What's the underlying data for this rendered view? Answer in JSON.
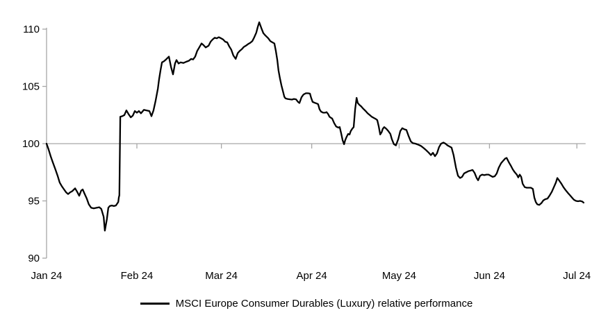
{
  "colors": {
    "background": "#FFFFFF",
    "axis": "#A6A6A6",
    "line": "#000000",
    "text": "#000000"
  },
  "chart_data": {
    "type": "line",
    "title": "",
    "legend": {
      "position": "bottom",
      "label": "MSCI Europe Consumer Durables (Luxury) relative performance"
    },
    "y_axis": {
      "range": [
        90,
        110
      ],
      "ticks": [
        90,
        95,
        100,
        105,
        110
      ],
      "tick_labels": [
        "90",
        "95",
        "100",
        "105",
        "110"
      ],
      "baseline_crossing": 100
    },
    "x_axis": {
      "unit": "days since 1 Jan 2024",
      "domain": [
        0,
        185
      ],
      "ticks": [
        {
          "d": 0,
          "label": "Jan 24"
        },
        {
          "d": 31,
          "label": "Feb 24"
        },
        {
          "d": 60,
          "label": "Mar 24"
        },
        {
          "d": 91,
          "label": "Apr 24"
        },
        {
          "d": 121,
          "label": "May 24"
        },
        {
          "d": 152,
          "label": "Jun 24"
        },
        {
          "d": 182,
          "label": "Jul 24"
        }
      ]
    },
    "grid": {
      "horizontal_line_at": 100,
      "vertical": false
    },
    "series": [
      {
        "name": "MSCI Europe Consumer Durables (Luxury) relative performance",
        "color": "#000000",
        "points": [
          [
            0,
            100
          ],
          [
            0.7,
            99.5
          ],
          [
            1.4,
            98.9
          ],
          [
            2.1,
            98.4
          ],
          [
            3.1,
            97.7
          ],
          [
            3.8,
            97.2
          ],
          [
            4.5,
            96.6
          ],
          [
            5.2,
            96.3
          ],
          [
            6,
            96
          ],
          [
            6.7,
            95.75
          ],
          [
            7.4,
            95.6
          ],
          [
            8.1,
            95.75
          ],
          [
            8.8,
            95.85
          ],
          [
            9.8,
            96.1
          ],
          [
            10.5,
            95.8
          ],
          [
            11.2,
            95.45
          ],
          [
            11.9,
            95.9
          ],
          [
            12.4,
            96
          ],
          [
            13.1,
            95.6
          ],
          [
            13.8,
            95.2
          ],
          [
            14.5,
            94.7
          ],
          [
            15.3,
            94.4
          ],
          [
            16.2,
            94.35
          ],
          [
            17.2,
            94.4
          ],
          [
            18.1,
            94.45
          ],
          [
            18.8,
            94.3
          ],
          [
            19.6,
            93.6
          ],
          [
            20,
            92.4
          ],
          [
            20.7,
            93.4
          ],
          [
            21.2,
            94.4
          ],
          [
            21.7,
            94.55
          ],
          [
            22.4,
            94.6
          ],
          [
            23.1,
            94.55
          ],
          [
            23.8,
            94.6
          ],
          [
            24.6,
            94.9
          ],
          [
            24.8,
            95.3
          ],
          [
            25,
            95.5
          ],
          [
            25.3,
            102.35
          ],
          [
            26,
            102.4
          ],
          [
            26.7,
            102.5
          ],
          [
            27.4,
            102.9
          ],
          [
            28.1,
            102.6
          ],
          [
            28.9,
            102.3
          ],
          [
            29.6,
            102.45
          ],
          [
            30.3,
            102.85
          ],
          [
            31,
            102.7
          ],
          [
            31.7,
            102.85
          ],
          [
            32.4,
            102.65
          ],
          [
            33.4,
            102.95
          ],
          [
            34.3,
            102.9
          ],
          [
            35.3,
            102.85
          ],
          [
            36,
            102.4
          ],
          [
            36.7,
            102.9
          ],
          [
            37.4,
            103.7
          ],
          [
            38.2,
            104.8
          ],
          [
            38.6,
            105.6
          ],
          [
            39.1,
            106.4
          ],
          [
            39.6,
            107.1
          ],
          [
            40.3,
            107.2
          ],
          [
            41,
            107.35
          ],
          [
            42,
            107.6
          ],
          [
            42.7,
            106.7
          ],
          [
            43.4,
            106.05
          ],
          [
            44.1,
            107
          ],
          [
            44.6,
            107.3
          ],
          [
            45.3,
            107
          ],
          [
            46,
            107.1
          ],
          [
            47,
            107.05
          ],
          [
            47.9,
            107.15
          ],
          [
            48.9,
            107.25
          ],
          [
            49.6,
            107.4
          ],
          [
            50.3,
            107.35
          ],
          [
            51,
            107.6
          ],
          [
            51.7,
            108.1
          ],
          [
            52.5,
            108.45
          ],
          [
            53.2,
            108.75
          ],
          [
            53.9,
            108.6
          ],
          [
            54.6,
            108.4
          ],
          [
            55.6,
            108.55
          ],
          [
            56.3,
            108.9
          ],
          [
            57,
            109.1
          ],
          [
            57.7,
            109.25
          ],
          [
            58.4,
            109.2
          ],
          [
            59.1,
            109.3
          ],
          [
            59.9,
            109.2
          ],
          [
            60.6,
            109.1
          ],
          [
            61.3,
            108.9
          ],
          [
            62,
            108.85
          ],
          [
            62.7,
            108.5
          ],
          [
            63.4,
            108.2
          ],
          [
            64.1,
            107.7
          ],
          [
            64.9,
            107.4
          ],
          [
            65.6,
            107.9
          ],
          [
            66.3,
            108.1
          ],
          [
            67,
            108.25
          ],
          [
            67.7,
            108.45
          ],
          [
            68.4,
            108.55
          ],
          [
            69.2,
            108.7
          ],
          [
            69.9,
            108.8
          ],
          [
            70.6,
            108.95
          ],
          [
            71.3,
            109.3
          ],
          [
            72,
            109.7
          ],
          [
            72.5,
            110.2
          ],
          [
            73,
            110.6
          ],
          [
            73.7,
            110.1
          ],
          [
            74.4,
            109.65
          ],
          [
            75.1,
            109.45
          ],
          [
            76.1,
            109.2
          ],
          [
            76.8,
            108.95
          ],
          [
            77.5,
            108.85
          ],
          [
            78.2,
            108.75
          ],
          [
            78.7,
            108.1
          ],
          [
            79.2,
            107.3
          ],
          [
            79.6,
            106.4
          ],
          [
            80.1,
            105.7
          ],
          [
            80.6,
            105.1
          ],
          [
            81.1,
            104.6
          ],
          [
            81.6,
            104.1
          ],
          [
            82,
            103.95
          ],
          [
            82.7,
            103.9
          ],
          [
            83.5,
            103.87
          ],
          [
            84.2,
            103.85
          ],
          [
            84.9,
            103.9
          ],
          [
            85.6,
            103.87
          ],
          [
            86.3,
            103.65
          ],
          [
            86.8,
            103.55
          ],
          [
            87.5,
            104.05
          ],
          [
            88.2,
            104.3
          ],
          [
            89,
            104.4
          ],
          [
            89.7,
            104.4
          ],
          [
            90.4,
            104.37
          ],
          [
            90.8,
            104
          ],
          [
            91.3,
            103.65
          ],
          [
            92,
            103.57
          ],
          [
            92.8,
            103.5
          ],
          [
            93.2,
            103.45
          ],
          [
            93.7,
            103
          ],
          [
            94.2,
            102.8
          ],
          [
            94.9,
            102.7
          ],
          [
            95.6,
            102.7
          ],
          [
            96.1,
            102.75
          ],
          [
            96.6,
            102.6
          ],
          [
            97.1,
            102.35
          ],
          [
            97.5,
            102.27
          ],
          [
            98,
            102.2
          ],
          [
            98.7,
            101.8
          ],
          [
            99.4,
            101.5
          ],
          [
            100.2,
            101.4
          ],
          [
            100.6,
            101.45
          ],
          [
            101.1,
            100.9
          ],
          [
            101.6,
            100.3
          ],
          [
            102.1,
            99.95
          ],
          [
            102.5,
            100.3
          ],
          [
            103,
            100.6
          ],
          [
            103.5,
            100.85
          ],
          [
            104,
            100.8
          ],
          [
            104.4,
            101.1
          ],
          [
            104.9,
            101.3
          ],
          [
            105.4,
            101.45
          ],
          [
            105.9,
            103
          ],
          [
            106.4,
            104
          ],
          [
            106.8,
            103.55
          ],
          [
            107.3,
            103.4
          ],
          [
            108,
            103.25
          ],
          [
            108.7,
            103.05
          ],
          [
            109.5,
            102.85
          ],
          [
            110.2,
            102.65
          ],
          [
            110.9,
            102.5
          ],
          [
            111.6,
            102.35
          ],
          [
            112.3,
            102.25
          ],
          [
            113,
            102.15
          ],
          [
            113.5,
            102.05
          ],
          [
            114,
            101.5
          ],
          [
            114.5,
            100.8
          ],
          [
            115,
            101
          ],
          [
            115.4,
            101.3
          ],
          [
            115.9,
            101.45
          ],
          [
            116.6,
            101.3
          ],
          [
            117.3,
            101.1
          ],
          [
            118,
            100.85
          ],
          [
            118.5,
            100.4
          ],
          [
            119.2,
            99.95
          ],
          [
            119.9,
            99.85
          ],
          [
            120.7,
            100.4
          ],
          [
            121.4,
            101.1
          ],
          [
            122.1,
            101.35
          ],
          [
            122.8,
            101.25
          ],
          [
            123.5,
            101.2
          ],
          [
            124.2,
            100.7
          ],
          [
            125,
            100.2
          ],
          [
            125.7,
            100.05
          ],
          [
            126.6,
            100
          ],
          [
            127.6,
            99.9
          ],
          [
            128.5,
            99.8
          ],
          [
            129.5,
            99.6
          ],
          [
            130.4,
            99.4
          ],
          [
            131.2,
            99.2
          ],
          [
            131.9,
            99
          ],
          [
            132.6,
            99.2
          ],
          [
            133.3,
            98.9
          ],
          [
            134,
            99.15
          ],
          [
            134.7,
            99.7
          ],
          [
            135.4,
            100
          ],
          [
            136.2,
            100.1
          ],
          [
            136.9,
            100
          ],
          [
            137.6,
            99.85
          ],
          [
            138.3,
            99.75
          ],
          [
            139,
            99.65
          ],
          [
            139.7,
            99
          ],
          [
            140.5,
            97.9
          ],
          [
            141.2,
            97.2
          ],
          [
            141.9,
            97
          ],
          [
            142.6,
            97.1
          ],
          [
            143.3,
            97.4
          ],
          [
            144,
            97.5
          ],
          [
            144.8,
            97.6
          ],
          [
            145.5,
            97.65
          ],
          [
            146.2,
            97.7
          ],
          [
            146.9,
            97.45
          ],
          [
            147.6,
            97
          ],
          [
            148.1,
            96.8
          ],
          [
            148.8,
            97.2
          ],
          [
            149.5,
            97.3
          ],
          [
            150.2,
            97.25
          ],
          [
            151,
            97.3
          ],
          [
            151.7,
            97.3
          ],
          [
            152.4,
            97.2
          ],
          [
            153.1,
            97.1
          ],
          [
            153.8,
            97.15
          ],
          [
            154.5,
            97.4
          ],
          [
            155.2,
            97.9
          ],
          [
            156,
            98.3
          ],
          [
            156.7,
            98.5
          ],
          [
            157.4,
            98.7
          ],
          [
            157.9,
            98.75
          ],
          [
            158.6,
            98.4
          ],
          [
            159.3,
            98.1
          ],
          [
            160,
            97.75
          ],
          [
            160.7,
            97.5
          ],
          [
            161.4,
            97.3
          ],
          [
            161.9,
            97.05
          ],
          [
            162.4,
            97.3
          ],
          [
            162.9,
            97.1
          ],
          [
            163.4,
            96.5
          ],
          [
            164.1,
            96.2
          ],
          [
            164.8,
            96.15
          ],
          [
            165.5,
            96.15
          ],
          [
            166.2,
            96.15
          ],
          [
            166.9,
            96.05
          ],
          [
            167.4,
            95.3
          ],
          [
            167.9,
            94.9
          ],
          [
            168.4,
            94.7
          ],
          [
            169.1,
            94.65
          ],
          [
            169.8,
            94.8
          ],
          [
            170.5,
            95.05
          ],
          [
            171.2,
            95.15
          ],
          [
            171.9,
            95.2
          ],
          [
            172.6,
            95.45
          ],
          [
            173.4,
            95.8
          ],
          [
            174.1,
            96.2
          ],
          [
            174.8,
            96.6
          ],
          [
            175.3,
            97
          ],
          [
            176,
            96.75
          ],
          [
            176.7,
            96.5
          ],
          [
            177.4,
            96.2
          ],
          [
            178.1,
            95.95
          ],
          [
            178.9,
            95.7
          ],
          [
            179.6,
            95.5
          ],
          [
            180.3,
            95.3
          ],
          [
            181,
            95.1
          ],
          [
            181.7,
            95
          ],
          [
            182.4,
            94.97
          ],
          [
            183.1,
            95
          ],
          [
            183.8,
            94.95
          ],
          [
            184.3,
            94.85
          ]
        ]
      }
    ]
  }
}
